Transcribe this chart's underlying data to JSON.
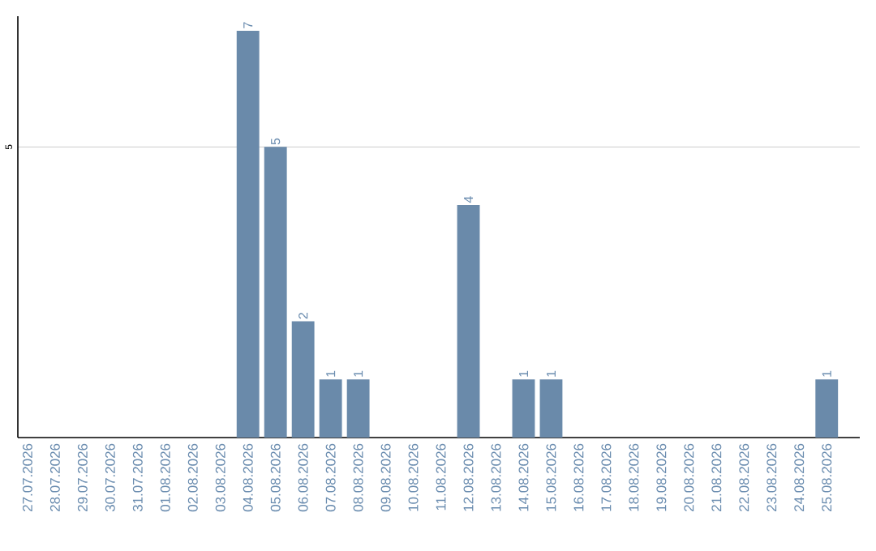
{
  "chart_data": {
    "type": "bar",
    "categories": [
      "27.07.2026",
      "28.07.2026",
      "29.07.2026",
      "30.07.2026",
      "31.07.2026",
      "01.08.2026",
      "02.08.2026",
      "03.08.2026",
      "04.08.2026",
      "05.08.2026",
      "06.08.2026",
      "07.08.2026",
      "08.08.2026",
      "09.08.2026",
      "10.08.2026",
      "11.08.2026",
      "12.08.2026",
      "13.08.2026",
      "14.08.2026",
      "15.08.2026",
      "16.08.2026",
      "17.08.2026",
      "18.08.2026",
      "19.08.2026",
      "20.08.2026",
      "21.08.2026",
      "22.08.2026",
      "23.08.2026",
      "24.08.2026",
      "25.08.2026"
    ],
    "values": [
      0,
      0,
      0,
      0,
      0,
      0,
      0,
      0,
      7,
      5,
      2,
      1,
      1,
      0,
      0,
      0,
      4,
      0,
      1,
      1,
      0,
      0,
      0,
      0,
      0,
      0,
      0,
      0,
      0,
      1
    ],
    "value_labels": [
      null,
      null,
      null,
      null,
      null,
      null,
      null,
      null,
      "7",
      "5",
      "2",
      "1",
      "1",
      null,
      null,
      null,
      "4",
      null,
      "1",
      "1",
      null,
      null,
      null,
      null,
      null,
      null,
      null,
      null,
      null,
      "1"
    ],
    "color": "#6a8aaa",
    "ylim": [
      0,
      7.25
    ],
    "yticks": [
      5
    ],
    "grid": "y"
  }
}
